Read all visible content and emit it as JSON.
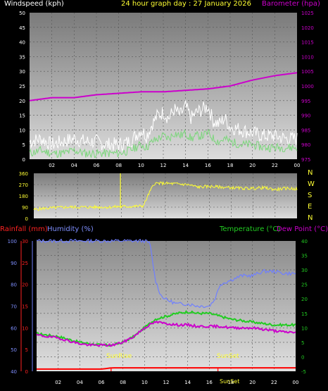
{
  "header": {
    "windspeed_label": "Windspeed (kph)",
    "title": "24 hour graph day : 27 January 2026",
    "barometer_label": "Barometer (hpa)"
  },
  "lower_header": {
    "rainfall_label": "Rainfall (mm)",
    "humidity_label": "Humidity (%)",
    "temperature_label": "Temperature (°C)",
    "dewpoint_label": "Dew Point (°C)"
  },
  "annotations": {
    "sunrise": "SunRise",
    "sunset": "SunSet",
    "sunset_small": "SunSet"
  },
  "direction_letters": [
    "N",
    "W",
    "S",
    "E",
    "N"
  ],
  "colors": {
    "wind_gust": "#ffffff",
    "wind_avg": "#7cd67c",
    "barometer": "#cc00cc",
    "direction": "#ffff33",
    "rainfall": "#ff0000",
    "humidity": "#6f7fff",
    "temperature": "#22cc22",
    "dewpoint": "#cc00cc"
  },
  "chart_data": [
    {
      "type": "line",
      "x_ticks": [
        "02",
        "04",
        "06",
        "08",
        "10",
        "12",
        "14",
        "16",
        "18",
        "20",
        "22",
        "00"
      ],
      "ylabel_left": "Windspeed (kph)",
      "ylim_left": [
        0,
        50
      ],
      "yticks_left": [
        "0",
        "5",
        "10",
        "15",
        "20",
        "25",
        "30",
        "35",
        "40",
        "45",
        "50"
      ],
      "ylabel_right": "Barometer (hpa)",
      "ylim_right": [
        975,
        1025
      ],
      "yticks_right": [
        "975",
        "980",
        "985",
        "990",
        "995",
        "1000",
        "1005",
        "1010",
        "1015",
        "1020",
        "1025"
      ],
      "series": [
        {
          "name": "gust",
          "x": [
            0,
            1,
            2,
            3,
            4,
            5,
            6,
            7,
            8,
            9,
            10,
            10.5,
            11,
            11.5,
            12,
            12.5,
            13,
            13.5,
            14,
            14.5,
            15,
            15.5,
            16,
            16.5,
            17,
            17.5,
            18,
            19,
            20,
            21,
            22,
            23,
            24
          ],
          "values": [
            6,
            7,
            5,
            6,
            7,
            6,
            6,
            5,
            5,
            6,
            10,
            8,
            12,
            15,
            16,
            14,
            17,
            15,
            18,
            14,
            16,
            17,
            18,
            13,
            12,
            14,
            11,
            10,
            9,
            8,
            8,
            7,
            7
          ]
        },
        {
          "name": "average",
          "x": [
            0,
            1,
            2,
            3,
            4,
            5,
            6,
            7,
            8,
            9,
            10,
            10.5,
            11,
            11.5,
            12,
            12.5,
            13,
            13.5,
            14,
            14.5,
            15,
            15.5,
            16,
            16.5,
            17,
            17.5,
            18,
            19,
            20,
            21,
            22,
            23,
            24
          ],
          "values": [
            2,
            3,
            2,
            2,
            3,
            2,
            2,
            2,
            2,
            3,
            5,
            4,
            6,
            7,
            8,
            7,
            9,
            8,
            9,
            7,
            8,
            8,
            9,
            7,
            6,
            7,
            6,
            5,
            5,
            4,
            4,
            4,
            4
          ]
        },
        {
          "name": "barometer",
          "x": [
            0,
            2,
            4,
            6,
            8,
            10,
            12,
            14,
            16,
            18,
            20,
            22,
            24
          ],
          "values": [
            995,
            996,
            996,
            997,
            997.5,
            998,
            998,
            998.5,
            999,
            1000,
            1002,
            1003.5,
            1004.5
          ]
        }
      ]
    },
    {
      "type": "line",
      "x_ticks": [
        "02",
        "04",
        "06",
        "08",
        "10",
        "12",
        "14",
        "16",
        "18",
        "20",
        "22",
        "00"
      ],
      "ylim": [
        0,
        360
      ],
      "yticks": [
        "0",
        "90",
        "180",
        "270",
        "360"
      ],
      "series": [
        {
          "name": "direction",
          "x": [
            0,
            1,
            2,
            3,
            4,
            5,
            6,
            7,
            8,
            9,
            10,
            10.5,
            11,
            12,
            13,
            14,
            15,
            16,
            17,
            18,
            19,
            20,
            21,
            22,
            23,
            24
          ],
          "values": [
            70,
            80,
            85,
            90,
            90,
            90,
            90,
            90,
            95,
            95,
            100,
            200,
            280,
            280,
            275,
            270,
            250,
            255,
            250,
            245,
            240,
            240,
            245,
            230,
            240,
            235
          ]
        }
      ]
    },
    {
      "type": "line",
      "x_ticks": [
        "02",
        "04",
        "06",
        "08",
        "10",
        "12",
        "14",
        "16",
        "18",
        "20",
        "22",
        "00"
      ],
      "ylabel_left_rain": "Rainfall (mm)",
      "ylim_rain": [
        0,
        30
      ],
      "yticks_rain": [
        "0",
        "5",
        "10",
        "15",
        "20",
        "25",
        "30"
      ],
      "ylabel_left_humidity": "Humidity (%)",
      "ylim_humidity": [
        40,
        100
      ],
      "yticks_humidity": [
        "40",
        "50",
        "60",
        "70",
        "80",
        "90",
        "100"
      ],
      "ylabel_right": "Temperature (°C)",
      "ylim_right": [
        -5,
        40
      ],
      "yticks_right": [
        "-5",
        "0",
        "5",
        "10",
        "15",
        "20",
        "25",
        "30",
        "35",
        "40"
      ],
      "series": [
        {
          "name": "rainfall",
          "x": [
            0,
            6,
            7,
            24
          ],
          "values": [
            0.5,
            0.5,
            0.8,
            0.8
          ]
        },
        {
          "name": "humidity",
          "x": [
            0,
            2,
            4,
            6,
            8,
            10,
            10.5,
            11,
            11.5,
            12,
            13,
            14,
            15,
            16,
            16.5,
            17,
            18,
            19,
            20,
            21,
            22,
            23,
            24
          ],
          "values": [
            100,
            100,
            100,
            100,
            100,
            100,
            99,
            82,
            75,
            73,
            71,
            71,
            70,
            70,
            73,
            80,
            82,
            84,
            84,
            86,
            86,
            85,
            85
          ]
        },
        {
          "name": "temperature",
          "x": [
            0,
            1,
            2,
            3,
            4,
            5,
            6,
            7,
            8,
            9,
            10,
            11,
            12,
            13,
            14,
            15,
            16,
            17,
            18,
            19,
            20,
            21,
            22,
            23,
            24
          ],
          "values": [
            8,
            7.5,
            7,
            6,
            5,
            4.5,
            4,
            4,
            5,
            7,
            10,
            13,
            14,
            15,
            15.5,
            15,
            15,
            14,
            13,
            12.5,
            12,
            11.5,
            11,
            11,
            11
          ]
        },
        {
          "name": "dewpoint",
          "x": [
            0,
            1,
            2,
            3,
            4,
            5,
            6,
            7,
            8,
            9,
            10,
            11,
            12,
            13,
            14,
            15,
            16,
            17,
            18,
            19,
            20,
            21,
            22,
            23,
            24
          ],
          "values": [
            7.5,
            7,
            6.5,
            5.5,
            4.5,
            4,
            4,
            4,
            5,
            7,
            10,
            12,
            11.5,
            11,
            11,
            10.5,
            10.5,
            10.5,
            10,
            10,
            10,
            9.5,
            9,
            8.5,
            8.5
          ]
        }
      ]
    }
  ]
}
